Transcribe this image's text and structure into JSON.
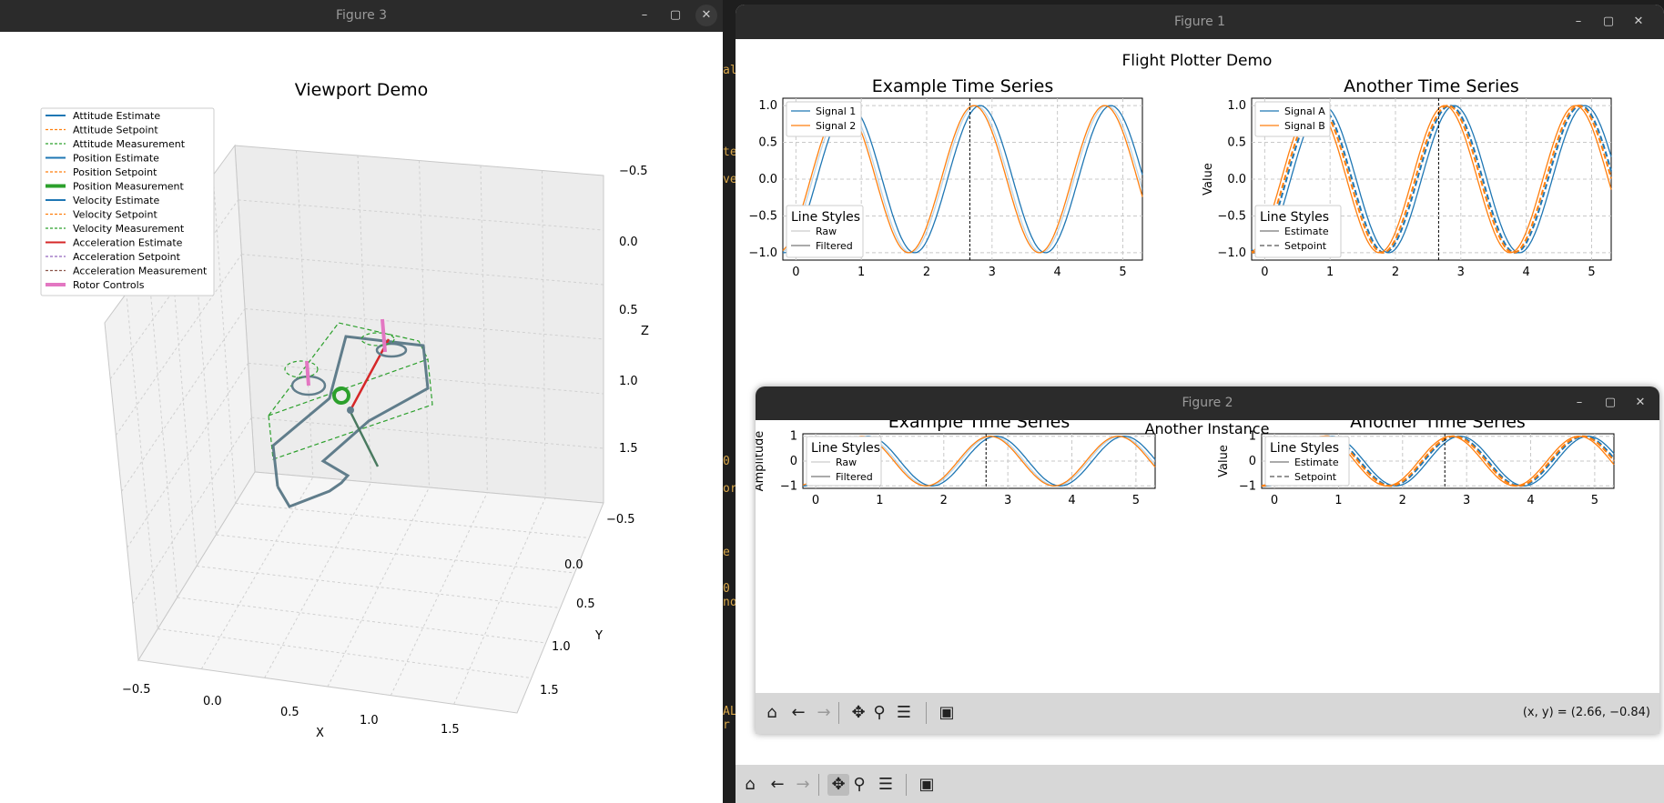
{
  "terminal_fragments": [
    "al",
    "te",
    "ve",
    "0",
    "or",
    "e",
    "0",
    "no",
    "AL",
    "r"
  ],
  "fig3": {
    "window_title": "Figure 3",
    "controls": {
      "minimize": "–",
      "maximize": "▢",
      "close": "✕"
    },
    "axes_title": "Viewport Demo",
    "legend": [
      {
        "label": "Attitude Estimate",
        "color": "#1f77b4",
        "style": "solid"
      },
      {
        "label": "Attitude Setpoint",
        "color": "#ff7f0e",
        "style": "dashed"
      },
      {
        "label": "Attitude Measurement",
        "color": "#2ca02c",
        "style": "dashed"
      },
      {
        "label": "Position Estimate",
        "color": "#1f77b4",
        "style": "solid"
      },
      {
        "label": "Position Setpoint",
        "color": "#ff7f0e",
        "style": "dashed"
      },
      {
        "label": "Position Measurement",
        "color": "#2ca02c",
        "style": "thick"
      },
      {
        "label": "Velocity Estimate",
        "color": "#1f77b4",
        "style": "solid"
      },
      {
        "label": "Velocity Setpoint",
        "color": "#ff7f0e",
        "style": "dashed"
      },
      {
        "label": "Velocity Measurement",
        "color": "#2ca02c",
        "style": "dashed"
      },
      {
        "label": "Acceleration Estimate",
        "color": "#d62728",
        "style": "solid"
      },
      {
        "label": "Acceleration Setpoint",
        "color": "#9467bd",
        "style": "dashed"
      },
      {
        "label": "Acceleration Measurement",
        "color": "#8c564b",
        "style": "dashed"
      },
      {
        "label": "Rotor Controls",
        "color": "#e377c2",
        "style": "thick"
      }
    ],
    "z_ticks": [
      "−0.5",
      "0.0",
      "0.5",
      "1.0",
      "1.5"
    ],
    "y_ticks": [
      "−0.5",
      "0.0",
      "0.5",
      "1.0",
      "1.5"
    ],
    "x_ticks": [
      "−0.5",
      "0.0",
      "0.5",
      "1.0",
      "1.5"
    ],
    "x_label": "X",
    "y_label": "Y",
    "z_label": "Z"
  },
  "fig1": {
    "window_title": "Figure 1",
    "controls": {
      "minimize": "–",
      "maximize": "▢",
      "close": "✕"
    },
    "suptitle": "Flight Plotter Demo",
    "left_title": "Example Time Series",
    "right_title": "Another Time Series",
    "right_ylabel": "Value",
    "left_yticks": [
      "1.0",
      "0.5",
      "0.0",
      "−0.5",
      "−1.0"
    ],
    "right_yticks": [
      "1.0",
      "0.5",
      "0.0",
      "−0.5",
      "−1.0"
    ],
    "xticks": [
      "0",
      "1",
      "2",
      "3",
      "4",
      "5"
    ],
    "left_legend": [
      "Signal 1",
      "Signal 2"
    ],
    "right_legend": [
      "Signal A",
      "Signal B"
    ],
    "left_style_legend": {
      "title": "Line Styles",
      "items": [
        "Raw",
        "Filtered"
      ]
    },
    "right_style_legend": {
      "title": "Line Styles",
      "items": [
        "Estimate",
        "Setpoint"
      ]
    }
  },
  "fig2": {
    "window_title": "Figure 2",
    "controls": {
      "minimize": "–",
      "maximize": "▢",
      "close": "✕"
    },
    "suptitle": "Another Instance",
    "left_title": "Example Time Series",
    "right_title": "Another Time Series",
    "left_ylabel": "Amplitude",
    "right_ylabel": "Value",
    "yticks": [
      "1",
      "0",
      "−1"
    ],
    "xticks": [
      "0",
      "1",
      "2",
      "3",
      "4",
      "5"
    ],
    "left_style_legend": {
      "title": "Line Styles",
      "items": [
        "Raw",
        "Filtered"
      ]
    },
    "right_style_legend": {
      "title": "Line Styles",
      "items": [
        "Estimate",
        "Setpoint"
      ]
    },
    "coords": "(x, y) = (2.66, −0.84)"
  },
  "toolbar_icons": [
    "home-icon",
    "back-arrow-icon",
    "forward-arrow-icon",
    "pan-icon",
    "zoom-icon",
    "configure-icon",
    "save-icon"
  ],
  "colors": {
    "c1": "#1f77b4",
    "c2": "#ff7f0e",
    "green": "#2ca02c",
    "red": "#d62728",
    "pink": "#e377c2",
    "titlebar": "#2b2b2b",
    "toolbar": "#d7d7d7"
  },
  "chart_data": [
    {
      "type": "line",
      "title": "Example Time Series",
      "xlim": [
        -0.2,
        5.3
      ],
      "ylim": [
        -1.1,
        1.1
      ],
      "grid": true,
      "legend_placement": "upper-left",
      "series": [
        {
          "name": "Signal 1",
          "function": "sin(pi*x - 0.8)"
        },
        {
          "name": "Signal 2",
          "function": "sin(pi*x - 0.6)"
        }
      ],
      "vline_x": 2.66
    },
    {
      "type": "line",
      "title": "Another Time Series",
      "ylabel": "Value",
      "xlim": [
        -0.2,
        5.3
      ],
      "ylim": [
        -1.1,
        1.1
      ],
      "grid": true,
      "legend_placement": "upper-left",
      "series": [
        {
          "name": "Signal A",
          "function": "sin(pi*x - 1.2)"
        },
        {
          "name": "Signal B",
          "function": "sin(pi*x - 0.95)"
        }
      ],
      "vline_x": 2.66
    },
    {
      "type": "line",
      "title": "Example Time Series",
      "ylabel": "Amplitude",
      "xlim": [
        -0.2,
        5.3
      ],
      "ylim": [
        -1.1,
        1.1
      ],
      "grid": true,
      "vline_x": 2.66
    },
    {
      "type": "line",
      "title": "Another Time Series",
      "ylabel": "Value",
      "xlim": [
        -0.2,
        5.3
      ],
      "ylim": [
        -1.1,
        1.1
      ],
      "grid": true,
      "vline_x": 2.66
    }
  ]
}
